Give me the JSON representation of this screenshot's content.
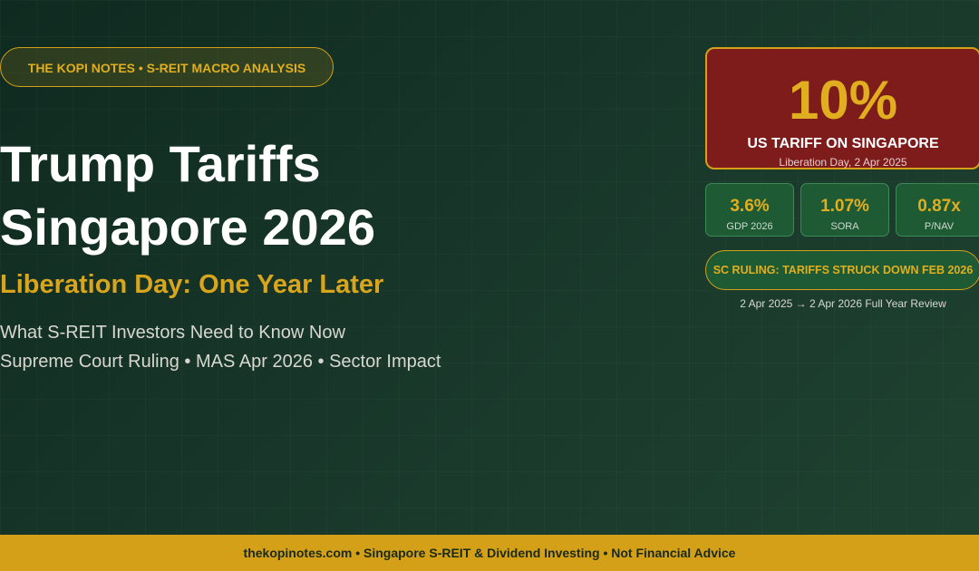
{
  "badge": "THE KOPI NOTES  •  S-REIT MACRO ANALYSIS",
  "title_lines": [
    "Trump Tariffs",
    "Singapore 2026"
  ],
  "subtitle": "Liberation Day: One Year Later",
  "lines": [
    "What S-REIT Investors Need to Know Now",
    "Supreme Court Ruling  •  MAS Apr 2026  •  Sector Impact"
  ],
  "hero": {
    "value": "10%",
    "label": "US TARIFF ON SINGAPORE",
    "note": "Liberation Day, 2 Apr 2025"
  },
  "stats": [
    {
      "value": "3.6%",
      "label": "GDP 2026"
    },
    {
      "value": "1.07%",
      "label": "SORA"
    },
    {
      "value": "0.87x",
      "label": "P/NAV"
    }
  ],
  "ruling": "SC RULING: TARIFFS STRUCK DOWN FEB 2026",
  "caption": "2 Apr 2025  →  2 Apr 2026  Full Year Review",
  "footer": "thekopinotes.com  •  Singapore S-REIT & Dividend Investing  •  Not Financial Advice"
}
